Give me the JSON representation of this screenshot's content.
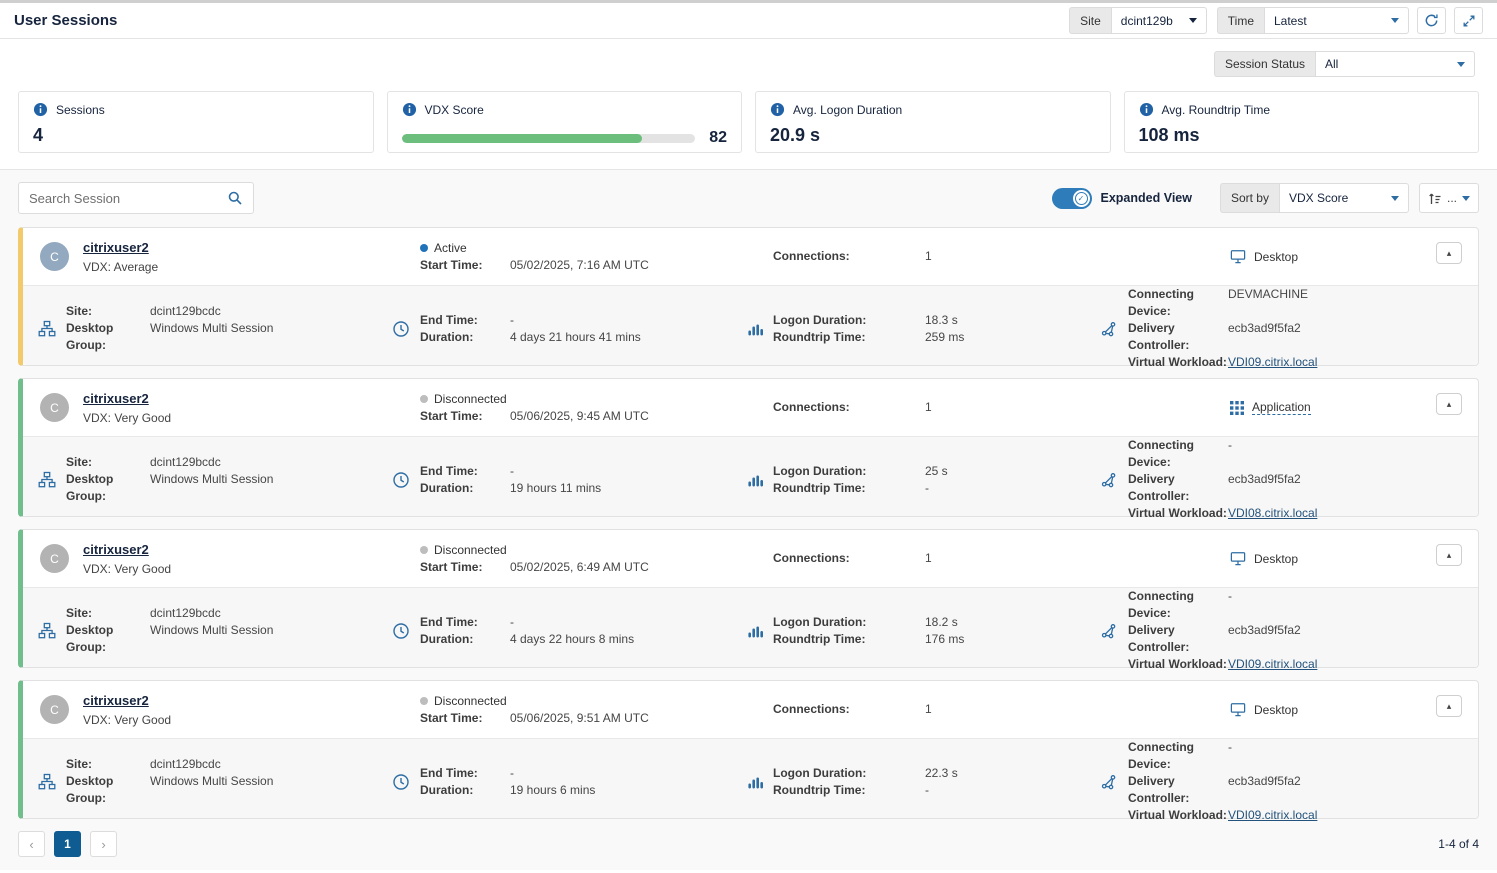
{
  "header": {
    "title": "User Sessions",
    "site_label": "Site",
    "site_value": "dcint129b",
    "time_label": "Time",
    "time_value": "Latest"
  },
  "filters": {
    "session_status_label": "Session Status",
    "session_status_value": "All"
  },
  "metrics": {
    "sessions": {
      "label": "Sessions",
      "value": "4"
    },
    "vdx": {
      "label": "VDX Score",
      "value": "82",
      "pct": 82,
      "bar_color": "#6cbe7d"
    },
    "logon": {
      "label": "Avg. Logon Duration",
      "value": "20.9 s"
    },
    "roundtrip": {
      "label": "Avg. Roundtrip Time",
      "value": "108 ms"
    }
  },
  "toolbar": {
    "search_placeholder": "Search Session",
    "expanded_view_label": "Expanded View",
    "sort_by_label": "Sort by",
    "sort_by_value": "VDX Score",
    "sort_more": "..."
  },
  "card_labels": {
    "site": "Site:",
    "desktop_group": "Desktop Group:",
    "start_time": "Start Time:",
    "end_time": "End Time:",
    "duration": "Duration:",
    "connections": "Connections:",
    "logon_duration": "Logon Duration:",
    "roundtrip_time": "Roundtrip Time:",
    "connecting_device": "Connecting Device:",
    "delivery_controller": "Delivery Controller:",
    "virtual_workload": "Virtual Workload:"
  },
  "sessions": [
    {
      "avatar": "C",
      "avatar_color": "#93a9bf",
      "user": "citrixuser2",
      "vdx": "VDX: Average",
      "accent_color": "#f2ca6b",
      "status": "Active",
      "status_color": "#2272b9",
      "start_time": "05/02/2025, 7:16 AM UTC",
      "connections": "1",
      "session_type": "Desktop",
      "site": "dcint129bcdc",
      "desktop_group": "Windows Multi Session",
      "end_time": "-",
      "duration": "4 days 21 hours 41 mins",
      "logon_duration": "18.3 s",
      "roundtrip_time": "259 ms",
      "connecting_device": "DEVMACHINE",
      "delivery_controller": "ecb3ad9f5fa2",
      "virtual_workload": "VDI09.citrix.local"
    },
    {
      "avatar": "C",
      "avatar_color": "#b3b3b3",
      "user": "citrixuser2",
      "vdx": "VDX: Very Good",
      "accent_color": "#6fbe8b",
      "status": "Disconnected",
      "status_color": "#bdbdbd",
      "start_time": "05/06/2025, 9:45 AM UTC",
      "connections": "1",
      "session_type": "Application",
      "site": "dcint129bcdc",
      "desktop_group": "Windows Multi Session",
      "end_time": "-",
      "duration": "19 hours 11 mins",
      "logon_duration": "25 s",
      "roundtrip_time": "-",
      "connecting_device": "-",
      "delivery_controller": "ecb3ad9f5fa2",
      "virtual_workload": "VDI08.citrix.local"
    },
    {
      "avatar": "C",
      "avatar_color": "#b3b3b3",
      "user": "citrixuser2",
      "vdx": "VDX: Very Good",
      "accent_color": "#6fbe8b",
      "status": "Disconnected",
      "status_color": "#bdbdbd",
      "start_time": "05/02/2025, 6:49 AM UTC",
      "connections": "1",
      "session_type": "Desktop",
      "site": "dcint129bcdc",
      "desktop_group": "Windows Multi Session",
      "end_time": "-",
      "duration": "4 days 22 hours 8 mins",
      "logon_duration": "18.2 s",
      "roundtrip_time": "176 ms",
      "connecting_device": "-",
      "delivery_controller": "ecb3ad9f5fa2",
      "virtual_workload": "VDI09.citrix.local"
    },
    {
      "avatar": "C",
      "avatar_color": "#b3b3b3",
      "user": "citrixuser2",
      "vdx": "VDX: Very Good",
      "accent_color": "#6fbe8b",
      "status": "Disconnected",
      "status_color": "#bdbdbd",
      "start_time": "05/06/2025, 9:51 AM UTC",
      "connections": "1",
      "session_type": "Desktop",
      "site": "dcint129bcdc",
      "desktop_group": "Windows Multi Session",
      "end_time": "-",
      "duration": "19 hours 6 mins",
      "logon_duration": "22.3 s",
      "roundtrip_time": "-",
      "connecting_device": "-",
      "delivery_controller": "ecb3ad9f5fa2",
      "virtual_workload": "VDI09.citrix.local"
    }
  ],
  "pagination": {
    "prev": "‹",
    "page": "1",
    "next": "›",
    "range": "1-4 of 4"
  },
  "icons": {
    "check": "✓",
    "collapse": "▴"
  },
  "colors": {
    "accent_blue": "#2d6da4",
    "navy": "#16243d"
  }
}
